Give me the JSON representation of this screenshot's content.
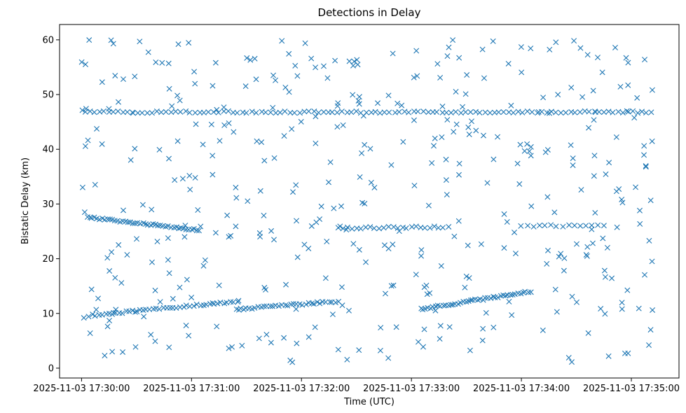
{
  "chart_data": {
    "type": "scatter",
    "title": "Detections in Delay",
    "xlabel": "Time (UTC)",
    "ylabel": "Bistatic Delay (km)",
    "x_unit": "UTC time",
    "xlim": [
      "2025-11-03 17:29:48",
      "2025-11-03 17:35:26"
    ],
    "ylim": [
      -1.8,
      62.8
    ],
    "xticks": [
      "2025-11-03 17:30:00",
      "2025-11-03 17:31:00",
      "2025-11-03 17:32:00",
      "2025-11-03 17:33:00",
      "2025-11-03 17:34:00",
      "2025-11-03 17:35:00"
    ],
    "yticks": [
      0,
      10,
      20,
      30,
      40,
      50,
      60
    ],
    "marker": "x",
    "color": "#1f77b4",
    "grid": false,
    "legend": "none",
    "tracks": [
      {
        "description": "constant delay track",
        "x_start": "2025-11-03 17:30:02",
        "x_end": "2025-11-03 17:35:11",
        "y_start": 46.8,
        "y_end": 46.8,
        "approx_points": 120
      },
      {
        "description": "descending track",
        "x_start": "2025-11-03 17:30:03",
        "x_end": "2025-11-03 17:31:04",
        "y_start": 27.6,
        "y_end": 25.2,
        "approx_points": 45
      },
      {
        "description": "rising track A",
        "x_start": "2025-11-03 17:30:04",
        "x_end": "2025-11-03 17:31:25",
        "y_start": 9.6,
        "y_end": 12.2,
        "approx_points": 45
      },
      {
        "description": "rising track B",
        "x_start": "2025-11-03 17:31:25",
        "x_end": "2025-11-03 17:32:20",
        "y_start": 10.8,
        "y_end": 12.2,
        "approx_points": 35
      },
      {
        "description": "rising track C",
        "x_start": "2025-11-03 17:33:05",
        "x_end": "2025-11-03 17:34:05",
        "y_start": 10.8,
        "y_end": 14.0,
        "approx_points": 45
      },
      {
        "description": "level track",
        "x_start": "2025-11-03 17:32:20",
        "x_end": "2025-11-03 17:33:20",
        "y_start": 25.6,
        "y_end": 25.8,
        "approx_points": 25
      },
      {
        "description": "level track",
        "x_start": "2025-11-03 17:34:00",
        "x_end": "2025-11-03 17:34:45",
        "y_start": 26.0,
        "y_end": 26.0,
        "approx_points": 15
      }
    ],
    "clutter": {
      "x_start": "2025-11-03 17:30:00",
      "x_end": "2025-11-03 17:35:12",
      "y_min": 1,
      "y_max": 60,
      "approx_points": 420
    }
  }
}
